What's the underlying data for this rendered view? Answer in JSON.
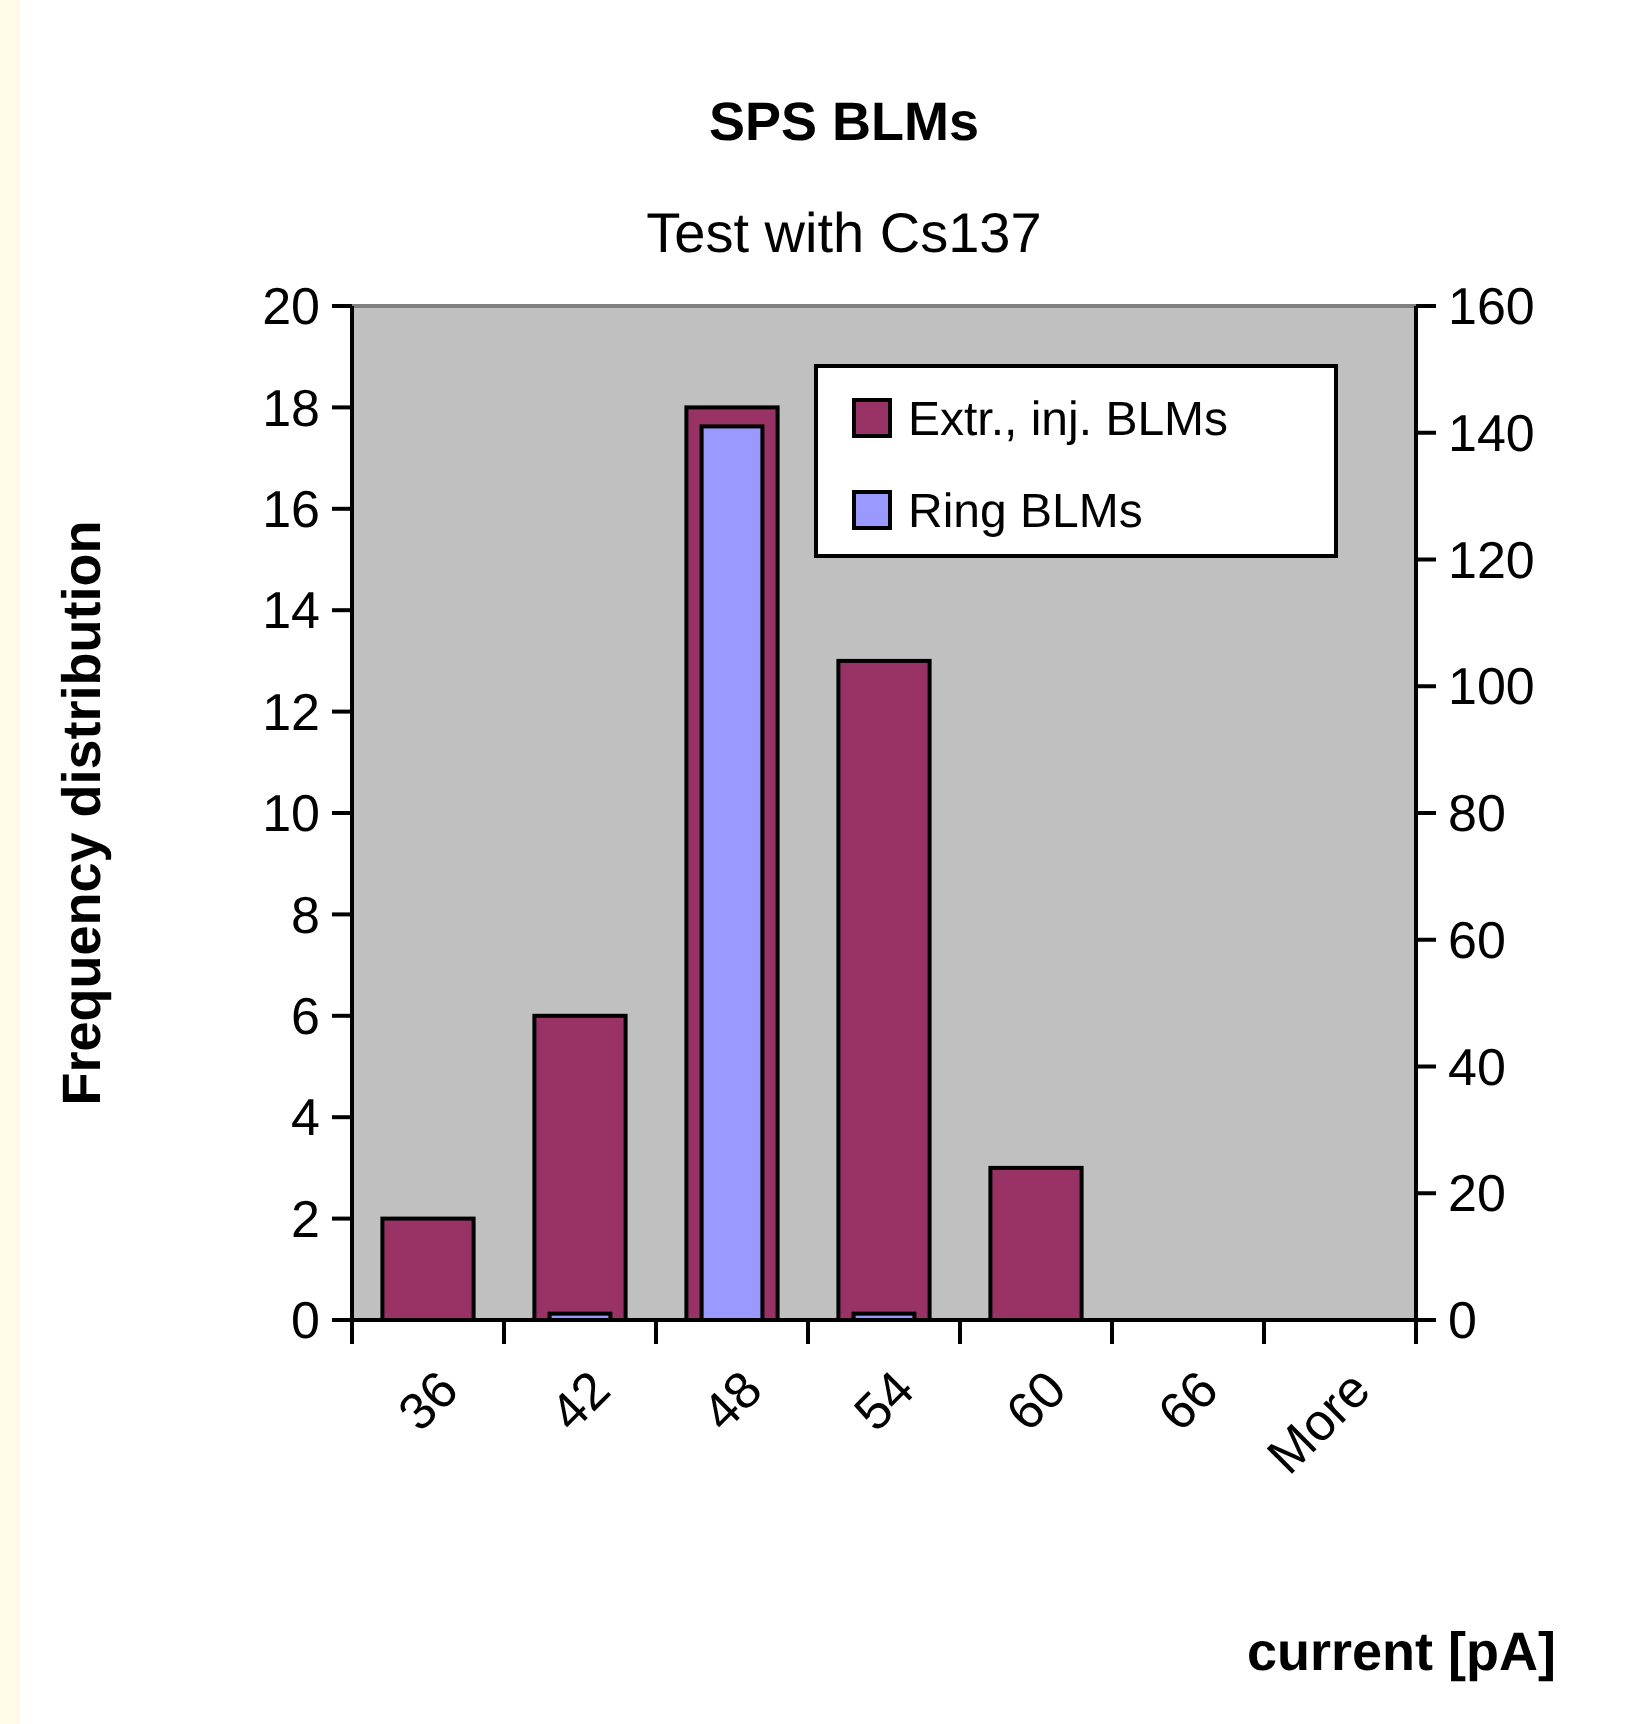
{
  "chart_data": {
    "type": "bar",
    "title": "SPS BLMs",
    "subtitle": "Test with Cs137",
    "xlabel": "current [pA]",
    "ylabel": "Frequency distribution",
    "categories": [
      "36",
      "42",
      "48",
      "54",
      "60",
      "66",
      "More"
    ],
    "series": [
      {
        "name": "Extr., inj. BLMs",
        "color": "#993366",
        "values": [
          2,
          6,
          18,
          13,
          3,
          0,
          0
        ]
      },
      {
        "name": "Ring BLMs",
        "color": "#9999ff",
        "axis": "y2",
        "values": [
          0,
          1,
          141,
          1,
          0,
          0,
          0
        ]
      }
    ],
    "ylim": [
      0,
      20
    ],
    "yticks": [
      0,
      2,
      4,
      6,
      8,
      10,
      12,
      14,
      16,
      18,
      20
    ],
    "y2lim": [
      0,
      160
    ],
    "y2ticks": [
      0,
      20,
      40,
      60,
      80,
      100,
      120,
      140,
      160
    ],
    "grid": false,
    "legend": "top right"
  }
}
